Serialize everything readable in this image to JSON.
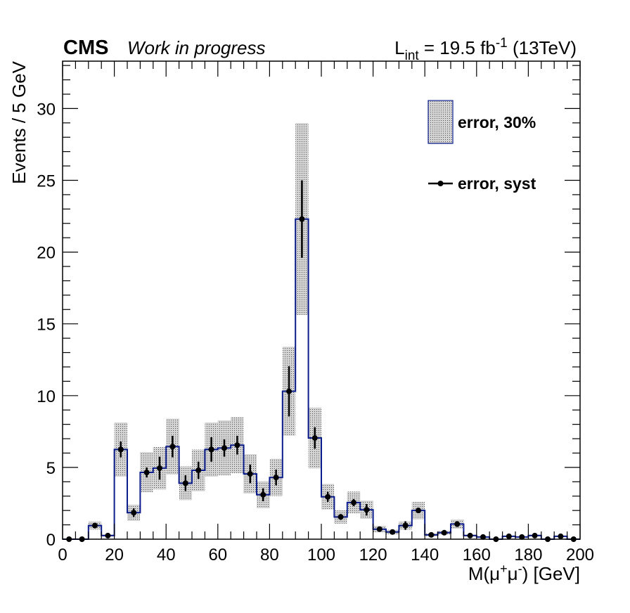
{
  "header": {
    "experiment": "CMS",
    "status": "Work in progress",
    "lumi_prefix": "L",
    "lumi_sub": "int",
    "lumi_value": " = 19.5 fb",
    "lumi_sup": "-1",
    "lumi_energy": " (13TeV)"
  },
  "legend": {
    "band_label": "error, 30%",
    "points_label": "error, syst"
  },
  "chart_data": {
    "type": "bar",
    "ylabel": "Events / 5 GeV",
    "xlabel_parts": [
      "M(μ",
      "+",
      "μ",
      "-",
      ") [GeV]"
    ],
    "xlim": [
      0,
      200
    ],
    "ylim": [
      0,
      33.3
    ],
    "bin_width": 5,
    "band_relative_error": 0.3,
    "x_ticks": [
      0,
      20,
      40,
      60,
      80,
      100,
      120,
      140,
      160,
      180,
      200
    ],
    "x_tick_labels": [
      "0",
      "20",
      "40",
      "60",
      "80",
      "100",
      "120",
      "140",
      "160",
      "180",
      "200"
    ],
    "y_ticks": [
      0,
      5,
      10,
      15,
      20,
      25,
      30
    ],
    "y_tick_labels": [
      "0",
      "5",
      "10",
      "15",
      "20",
      "25",
      "30"
    ],
    "bin_low_edges": [
      0,
      5,
      10,
      15,
      20,
      25,
      30,
      35,
      40,
      45,
      50,
      55,
      60,
      65,
      70,
      75,
      80,
      85,
      90,
      95,
      100,
      105,
      110,
      115,
      120,
      125,
      130,
      135,
      140,
      145,
      150,
      155,
      160,
      165,
      170,
      175,
      180,
      185,
      190,
      195
    ],
    "values": [
      0,
      0,
      0.95,
      0.25,
      6.25,
      1.85,
      4.65,
      4.95,
      6.45,
      3.9,
      4.8,
      6.25,
      6.35,
      6.55,
      4.55,
      3.1,
      4.3,
      10.3,
      22.3,
      7.05,
      2.95,
      1.55,
      2.55,
      2.05,
      0.7,
      0.5,
      0.95,
      2.0,
      0.3,
      0.45,
      1.05,
      0.25,
      0.15,
      0,
      0.2,
      0.15,
      0.25,
      0,
      0.2,
      0
    ],
    "syst_errors": [
      0,
      0,
      0.15,
      0.1,
      0.55,
      0.3,
      0.35,
      0.8,
      0.75,
      0.55,
      0.6,
      0.85,
      0.6,
      0.65,
      0.65,
      0.45,
      0.55,
      1.75,
      2.7,
      0.75,
      0.35,
      0.2,
      0.25,
      0.4,
      0.1,
      0.1,
      0.3,
      0.15,
      0.05,
      0.1,
      0.2,
      0.05,
      0.05,
      0,
      0.05,
      0.05,
      0.05,
      0,
      0.05,
      0
    ]
  },
  "colors": {
    "histogram_line": "#0b1c8c",
    "band_fill": "#8a8a8a",
    "marker": "#000000",
    "frame": "#000000"
  }
}
